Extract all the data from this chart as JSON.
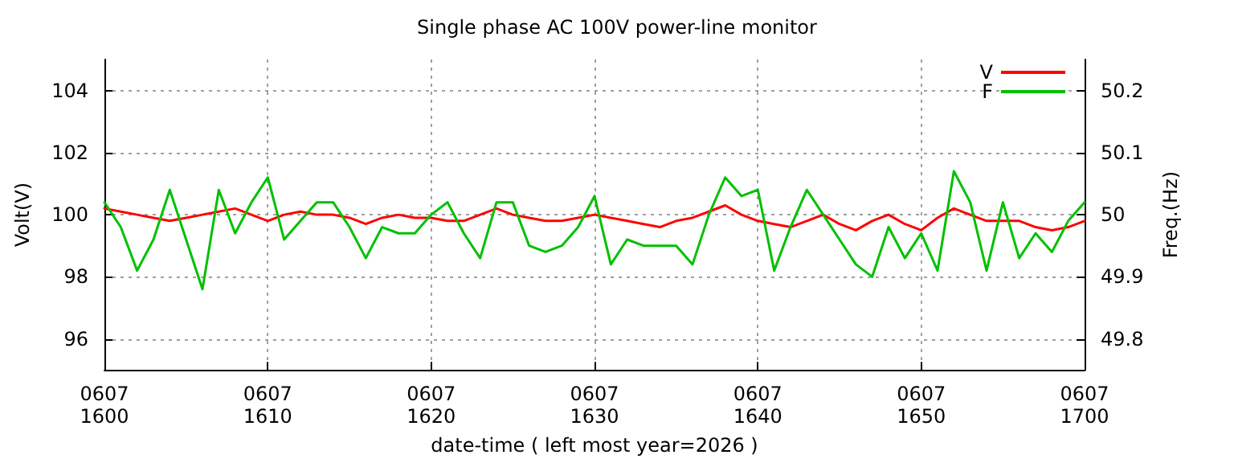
{
  "chart_data": {
    "type": "line",
    "title": "Single phase AC 100V power-line monitor",
    "xlabel": "date-time ( left most year=2026 )",
    "ylabel": "Volt(V)",
    "y2label": "Freq.(Hz)",
    "categories": [
      "0607\n1600",
      null,
      null,
      null,
      null,
      null,
      null,
      null,
      null,
      null,
      "0607\n1610",
      null,
      null,
      null,
      null,
      null,
      null,
      null,
      null,
      null,
      "0607\n1620",
      null,
      null,
      null,
      null,
      null,
      null,
      null,
      null,
      null,
      "0607\n1630",
      null,
      null,
      null,
      null,
      null,
      null,
      null,
      null,
      null,
      "0607\n1640",
      null,
      null,
      null,
      null,
      null,
      null,
      null,
      null,
      null,
      "0607\n1650",
      null,
      null,
      null,
      null,
      null,
      null,
      null,
      null,
      null,
      "0607\n1700"
    ],
    "ylim": [
      95,
      105
    ],
    "yticks": [
      96,
      98,
      100,
      102,
      104
    ],
    "y2lim": [
      49.75,
      50.25
    ],
    "y2ticks": [
      49.8,
      49.9,
      50,
      50.1,
      50.2
    ],
    "grid": true,
    "legend": "top right",
    "marker": "none",
    "line_style": "solid",
    "series": [
      {
        "name": "V",
        "color": "#ff0000",
        "values": [
          100.2,
          100.1,
          100.0,
          99.9,
          99.8,
          99.9,
          100.0,
          100.1,
          100.2,
          100.0,
          99.8,
          100.0,
          100.1,
          100.0,
          100.0,
          99.9,
          99.7,
          99.9,
          100.0,
          99.9,
          99.9,
          99.8,
          99.8,
          100.0,
          100.2,
          100.0,
          99.9,
          99.8,
          99.8,
          99.9,
          100.0,
          99.9,
          99.8,
          99.7,
          99.6,
          99.8,
          99.9,
          100.1,
          100.3,
          100.0,
          99.8,
          99.7,
          99.6,
          99.8,
          100.0,
          99.7,
          99.5,
          99.8,
          100.0,
          99.7,
          99.5,
          99.9,
          100.2,
          100.0,
          99.8,
          99.8,
          99.8,
          99.6,
          99.5,
          99.6,
          99.8
        ]
      },
      {
        "name": "F",
        "color": "#00c000",
        "axis": "y2",
        "values": [
          50.02,
          49.98,
          49.91,
          49.96,
          50.04,
          49.96,
          49.88,
          50.04,
          49.97,
          50.02,
          50.06,
          49.96,
          49.99,
          50.02,
          50.02,
          49.98,
          49.93,
          49.98,
          49.97,
          49.97,
          50.0,
          50.02,
          49.97,
          49.93,
          50.02,
          50.02,
          49.95,
          49.94,
          49.95,
          49.98,
          50.03,
          49.92,
          49.96,
          49.95,
          49.95,
          49.95,
          49.92,
          50.0,
          50.06,
          50.03,
          50.04,
          49.91,
          49.98,
          50.04,
          50.0,
          49.96,
          49.92,
          49.9,
          49.98,
          49.93,
          49.97,
          49.91,
          50.07,
          50.02,
          49.91,
          50.02,
          49.93,
          49.97,
          49.94,
          49.99,
          50.02
        ]
      }
    ]
  }
}
